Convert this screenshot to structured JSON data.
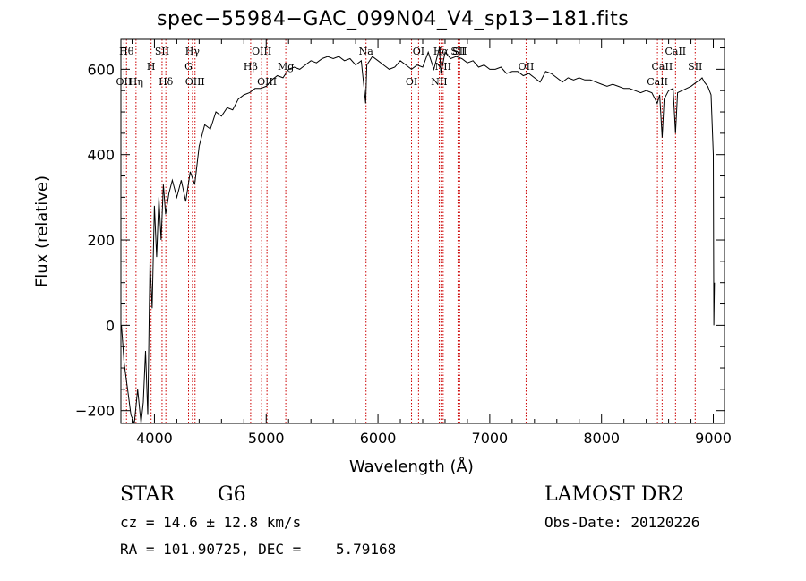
{
  "chart_data": {
    "type": "line",
    "title": "spec−55984−GAC_099N04_V4_sp13−181.fits",
    "xlabel": "Wavelength (Å)",
    "ylabel": "Flux (relative)",
    "xlim": [
      3700,
      9100
    ],
    "ylim": [
      -230,
      670
    ],
    "xticks": [
      4000,
      5000,
      6000,
      7000,
      8000,
      9000
    ],
    "xtick_labels": [
      "4000",
      "5000",
      "6000",
      "7000",
      "8000",
      "9000"
    ],
    "yticks": [
      -200,
      0,
      200,
      400,
      600
    ],
    "ytick_labels": [
      "−200",
      "0",
      "200",
      "400",
      "600"
    ],
    "series": [
      {
        "name": "flux",
        "x": [
          3705,
          3730,
          3760,
          3790,
          3820,
          3850,
          3880,
          3900,
          3920,
          3940,
          3960,
          3980,
          4000,
          4020,
          4040,
          4060,
          4080,
          4100,
          4130,
          4160,
          4200,
          4240,
          4280,
          4320,
          4360,
          4400,
          4450,
          4500,
          4550,
          4600,
          4650,
          4700,
          4750,
          4800,
          4850,
          4900,
          4950,
          5000,
          5050,
          5100,
          5150,
          5200,
          5250,
          5300,
          5350,
          5400,
          5450,
          5500,
          5550,
          5600,
          5650,
          5700,
          5750,
          5800,
          5850,
          5890,
          5900,
          5950,
          6000,
          6050,
          6100,
          6150,
          6200,
          6250,
          6300,
          6350,
          6400,
          6450,
          6500,
          6550,
          6563,
          6600,
          6650,
          6700,
          6750,
          6800,
          6850,
          6900,
          6950,
          7000,
          7050,
          7100,
          7150,
          7200,
          7250,
          7300,
          7350,
          7400,
          7450,
          7500,
          7550,
          7600,
          7650,
          7700,
          7750,
          7800,
          7850,
          7900,
          7950,
          8000,
          8050,
          8100,
          8150,
          8200,
          8250,
          8300,
          8350,
          8400,
          8450,
          8498,
          8520,
          8542,
          8560,
          8600,
          8640,
          8662,
          8680,
          8720,
          8760,
          8800,
          8850,
          8880,
          8900,
          8920,
          8950,
          8980,
          9000,
          9005,
          9010
        ],
        "y": [
          0,
          -90,
          -150,
          -210,
          -230,
          -150,
          -230,
          -180,
          -60,
          -210,
          150,
          40,
          280,
          160,
          300,
          200,
          330,
          260,
          310,
          340,
          300,
          340,
          290,
          360,
          330,
          420,
          470,
          460,
          500,
          490,
          510,
          505,
          530,
          540,
          545,
          555,
          555,
          560,
          575,
          585,
          580,
          600,
          605,
          600,
          610,
          620,
          615,
          625,
          630,
          625,
          630,
          620,
          625,
          610,
          620,
          520,
          610,
          630,
          620,
          610,
          600,
          605,
          620,
          610,
          600,
          610,
          605,
          640,
          600,
          650,
          590,
          640,
          625,
          630,
          625,
          615,
          620,
          605,
          610,
          600,
          600,
          605,
          590,
          595,
          595,
          585,
          590,
          580,
          570,
          595,
          590,
          580,
          570,
          580,
          575,
          580,
          575,
          575,
          570,
          565,
          560,
          565,
          560,
          555,
          555,
          550,
          545,
          550,
          545,
          520,
          540,
          440,
          530,
          550,
          555,
          450,
          545,
          550,
          555,
          560,
          570,
          575,
          580,
          570,
          560,
          540,
          400,
          0,
          100
        ]
      }
    ],
    "line_markers": [
      {
        "wavelength": 3750,
        "label": "Hθ",
        "label_row": "upper"
      },
      {
        "wavelength": 3727,
        "label": "OII",
        "label_row": "lower"
      },
      {
        "wavelength": 3835,
        "label": "Hη",
        "label_row": "lower"
      },
      {
        "wavelength": 3970,
        "label": "H",
        "label_row": "middle"
      },
      {
        "wavelength": 4068,
        "label": "SII",
        "label_row": "upper"
      },
      {
        "wavelength": 4102,
        "label": "Hδ",
        "label_row": "lower"
      },
      {
        "wavelength": 4340,
        "label": "Hγ",
        "label_row": "upper"
      },
      {
        "wavelength": 4305,
        "label": "G",
        "label_row": "middle"
      },
      {
        "wavelength": 4363,
        "label": "OIII",
        "label_row": "lower"
      },
      {
        "wavelength": 4861,
        "label": "Hβ",
        "label_row": "middle"
      },
      {
        "wavelength": 4959,
        "label": "OIII",
        "label_row": "upper"
      },
      {
        "wavelength": 5007,
        "label": "OIII",
        "label_row": "lower"
      },
      {
        "wavelength": 5175,
        "label": "Mg",
        "label_row": "middle"
      },
      {
        "wavelength": 5893,
        "label": "Na",
        "label_row": "upper"
      },
      {
        "wavelength": 6300,
        "label": "OI",
        "label_row": "lower"
      },
      {
        "wavelength": 6363,
        "label": "OI",
        "label_row": "upper"
      },
      {
        "wavelength": 6548,
        "label": "NII",
        "label_row": "lower"
      },
      {
        "wavelength": 6563,
        "label": "Hα",
        "label_row": "upper"
      },
      {
        "wavelength": 6583,
        "label": "NII",
        "label_row": "middle"
      },
      {
        "wavelength": 6716,
        "label": "SII",
        "label_row": "upper"
      },
      {
        "wavelength": 6731,
        "label": "SII",
        "label_row": "upper"
      },
      {
        "wavelength": 7325,
        "label": "OII",
        "label_row": "middle"
      },
      {
        "wavelength": 8500,
        "label": "CaII",
        "label_row": "lower"
      },
      {
        "wavelength": 8542,
        "label": "CaII",
        "label_row": "middle"
      },
      {
        "wavelength": 8662,
        "label": "CaII",
        "label_row": "upper"
      },
      {
        "wavelength": 8838,
        "label": "SII",
        "label_row": "middle"
      }
    ],
    "line_color": "#000000",
    "marker_color": "#cc0000"
  },
  "info": {
    "object_class": "STAR",
    "subclass": "G6",
    "survey": "LAMOST DR2",
    "cz": "cz = 14.6 ± 12.8 km/s",
    "obs_date": "Obs-Date: 20120226",
    "radec": "RA = 101.90725, DEC =    5.79168"
  }
}
